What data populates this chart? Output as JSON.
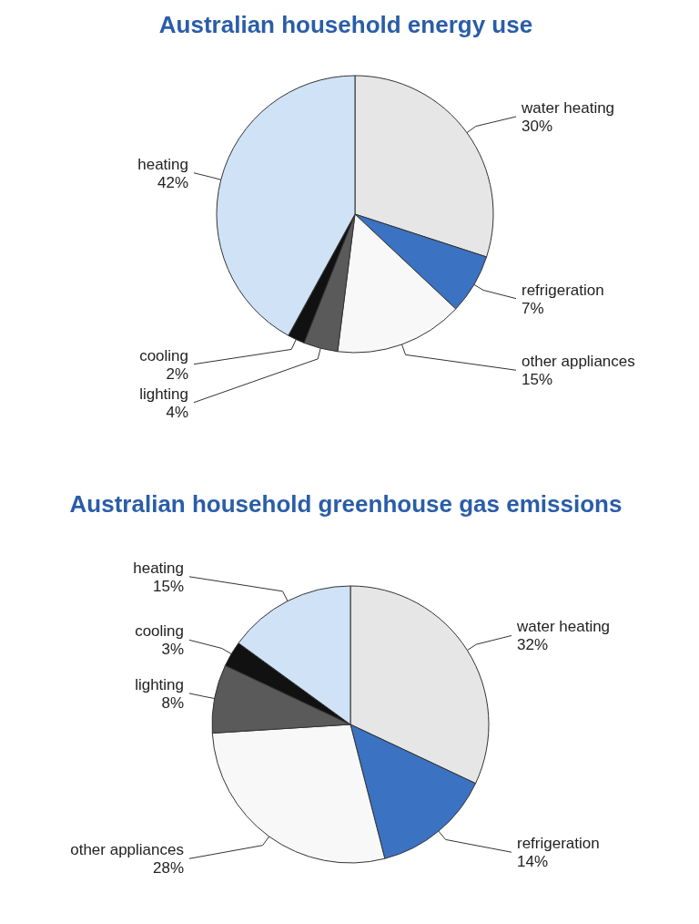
{
  "chart_data": [
    {
      "type": "pie",
      "title": "Australian household energy use",
      "categories": [
        "water heating",
        "refrigeration",
        "other appliances",
        "lighting",
        "cooling",
        "heating"
      ],
      "values": [
        30,
        7,
        15,
        4,
        2,
        42
      ],
      "value_labels": [
        "30%",
        "7%",
        "15%",
        "4%",
        "2%",
        "42%"
      ],
      "colors": [
        "#e6e6e6",
        "#3b72c2",
        "#f8f8f8",
        "#5a5a5a",
        "#111111",
        "#cfe2f6"
      ]
    },
    {
      "type": "pie",
      "title": "Australian household greenhouse gas emissions",
      "categories": [
        "water heating",
        "refrigeration",
        "other appliances",
        "lighting",
        "cooling",
        "heating"
      ],
      "values": [
        32,
        14,
        28,
        8,
        3,
        15
      ],
      "value_labels": [
        "32%",
        "14%",
        "28%",
        "8%",
        "3%",
        "15%"
      ],
      "colors": [
        "#e6e6e6",
        "#3b72c2",
        "#f8f8f8",
        "#5a5a5a",
        "#111111",
        "#cfe2f6"
      ]
    }
  ]
}
